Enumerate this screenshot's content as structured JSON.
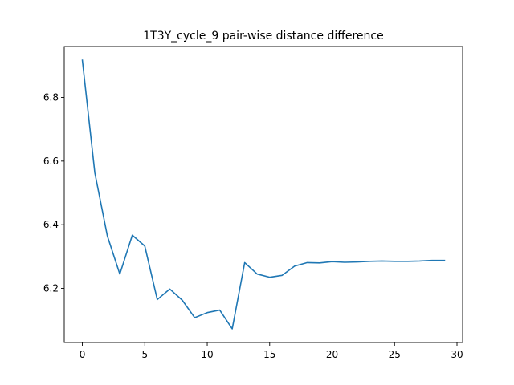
{
  "chart_data": {
    "type": "line",
    "title": "1T3Y_cycle_9 pair-wise distance difference",
    "xlabel": "",
    "ylabel": "",
    "xlim": [
      -1.45,
      30.45
    ],
    "ylim": [
      6.03,
      6.96
    ],
    "grid": false,
    "x_ticks": [
      0,
      5,
      10,
      15,
      20,
      25,
      30
    ],
    "x_tick_labels": [
      "0",
      "5",
      "10",
      "15",
      "20",
      "25",
      "30"
    ],
    "y_ticks": [
      6.2,
      6.4,
      6.6,
      6.8
    ],
    "y_tick_labels": [
      "6.2",
      "6.4",
      "6.6",
      "6.8"
    ],
    "line_color": "#1f77b4",
    "series": [
      {
        "x": [
          0,
          1,
          2,
          3,
          4,
          5,
          6,
          7,
          8,
          9,
          10,
          11,
          12,
          13,
          14,
          15,
          16,
          17,
          18,
          19,
          20,
          21,
          22,
          23,
          24,
          25,
          26,
          27,
          28,
          29
        ],
        "values": [
          6.917,
          6.563,
          6.365,
          6.245,
          6.367,
          6.333,
          6.165,
          6.198,
          6.163,
          6.108,
          6.124,
          6.132,
          6.073,
          6.281,
          6.245,
          6.235,
          6.241,
          6.27,
          6.281,
          6.28,
          6.284,
          6.282,
          6.283,
          6.285,
          6.286,
          6.285,
          6.285,
          6.286,
          6.288,
          6.288
        ]
      }
    ]
  }
}
